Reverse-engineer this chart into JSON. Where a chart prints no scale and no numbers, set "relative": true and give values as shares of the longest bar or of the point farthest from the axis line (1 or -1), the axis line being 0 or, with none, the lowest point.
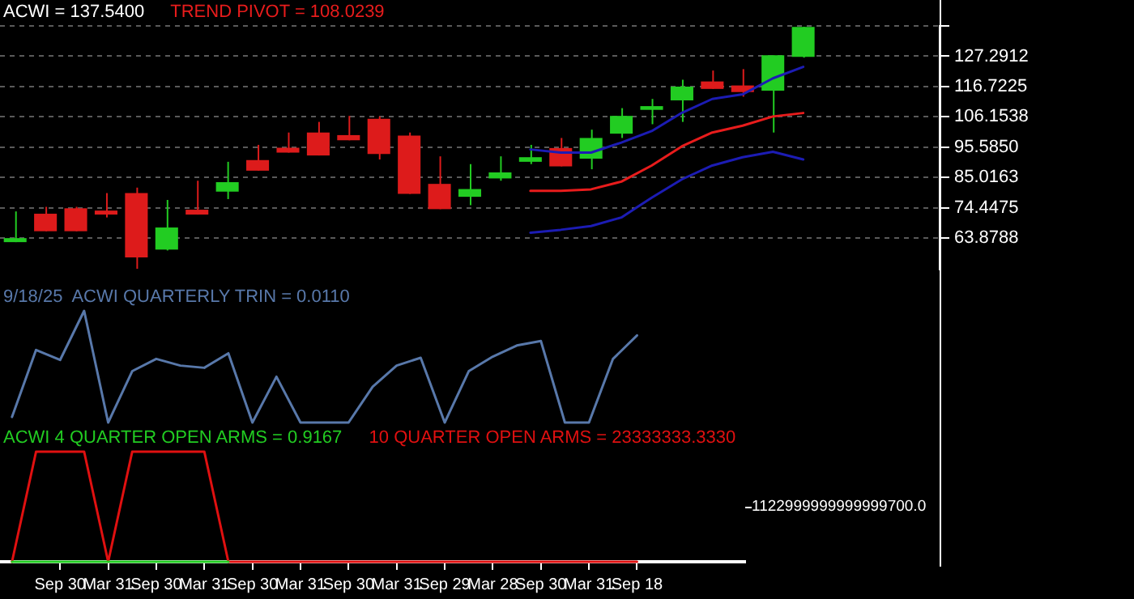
{
  "chart_data": [
    {
      "type": "candlestick",
      "title": "ACWI = 137.5400",
      "legend": "top left",
      "grid": "y",
      "tick_labels": "y",
      "marker": "none",
      "categories": [
        null,
        null,
        null,
        null,
        null,
        null,
        null,
        null,
        null,
        null,
        null,
        null,
        null,
        null,
        null,
        null,
        null,
        null,
        null,
        null,
        null,
        null,
        null,
        null,
        null,
        null,
        null,
        null,
        null,
        null,
        null
      ],
      "ylim": [
        53.0,
        137.86
      ],
      "yticks": [
        63.8788,
        74.4475,
        85.0163,
        {
          "value": 95.585,
          "label": "95.5850"
        },
        106.1538,
        116.7225,
        127.2912,
        {
          "value": 137.86,
          "label": null
        }
      ],
      "series": [
        {
          "colors": [
            "#22cc22",
            "#dd1b1b",
            "#dd1b1b",
            "#dd1b1b",
            "#dd1b1b",
            "#22cc22",
            "#dd1b1b",
            "#22cc22",
            "#dd1b1b",
            "#dd1b1b",
            "#dd1b1b",
            "#dd1b1b",
            "#dd1b1b",
            "#dd1b1b",
            "#dd1b1b",
            "#22cc22",
            "#22cc22",
            "#22cc22",
            "#dd1b1b",
            "#22cc22",
            "#22cc22",
            "#22cc22",
            "#22cc22",
            "#dd1b1b",
            "#dd1b1b",
            "#22cc22",
            "#22cc22",
            null,
            null,
            null,
            null
          ],
          "ohlc": [
            [
              62.5,
              73.2,
              62.5,
              63.9
            ],
            [
              72.4,
              74.8,
              66.3,
              66.3
            ],
            [
              74.3,
              74.8,
              66.3,
              66.3
            ],
            [
              73.5,
              79.6,
              71.1,
              72.1
            ],
            [
              79.6,
              81.5,
              53.2,
              57.2
            ],
            [
              59.9,
              77.2,
              59.6,
              67.6
            ],
            [
              73.8,
              83.9,
              72.1,
              72.1
            ],
            [
              80.1,
              90.5,
              77.5,
              83.4
            ],
            [
              91.1,
              96.4,
              87.4,
              87.4
            ],
            [
              95.4,
              100.7,
              93.7,
              93.7
            ],
            [
              100.7,
              104.4,
              92.7,
              92.7
            ],
            [
              99.8,
              106.5,
              98.0,
              98.0
            ],
            [
              105.5,
              106.3,
              91.3,
              93.2
            ],
            [
              99.6,
              100.7,
              79.3,
              79.3
            ],
            [
              82.8,
              92.4,
              74.0,
              74.0
            ],
            [
              78.3,
              89.7,
              75.4,
              81.0
            ],
            [
              84.7,
              92.4,
              83.9,
              86.8
            ],
            [
              90.5,
              96.4,
              89.7,
              92.1
            ],
            [
              95.3,
              98.8,
              88.9,
              88.9
            ],
            [
              91.6,
              101.7,
              87.9,
              98.8
            ],
            [
              100.3,
              109.2,
              98.8,
              106.5
            ],
            [
              108.6,
              112.4,
              103.6,
              109.9
            ],
            [
              111.9,
              119.1,
              104.4,
              116.7
            ],
            [
              118.5,
              122.3,
              115.9,
              115.9
            ],
            [
              117.1,
              122.8,
              113.2,
              114.8
            ],
            [
              115.3,
              127.6,
              100.7,
              127.6
            ],
            [
              127.1,
              137.54,
              126.8,
              137.54
            ],
            null,
            null,
            null,
            null
          ]
        },
        {
          "type": "line",
          "name": "TREND PIVOT = 108.0239",
          "color": "#e81c1c",
          "values": [
            null,
            null,
            null,
            null,
            null,
            null,
            null,
            null,
            null,
            null,
            null,
            null,
            null,
            null,
            null,
            null,
            null,
            80.4,
            80.4,
            80.9,
            83.6,
            89.2,
            95.9,
            100.7,
            103.1,
            106.3,
            107.5,
            null,
            null,
            null,
            null
          ]
        },
        {
          "type": "line",
          "color": "#1c1cb4",
          "values": [
            null,
            null,
            null,
            null,
            null,
            null,
            null,
            null,
            null,
            null,
            null,
            null,
            null,
            null,
            null,
            null,
            null,
            94.8,
            93.7,
            93.7,
            97.2,
            101.2,
            107.6,
            112.4,
            114.0,
            119.6,
            123.6,
            null,
            null,
            null,
            null
          ]
        },
        {
          "type": "line",
          "color": "#1c1cb4",
          "values": [
            null,
            null,
            null,
            null,
            null,
            null,
            null,
            null,
            null,
            null,
            null,
            null,
            null,
            null,
            null,
            null,
            null,
            65.8,
            66.8,
            68.1,
            71.1,
            78.0,
            84.4,
            89.2,
            92.1,
            94.0,
            91.3,
            null,
            null,
            null,
            null
          ]
        }
      ]
    },
    {
      "type": "line",
      "relative": true,
      "legend": "top left",
      "tick_labels": false,
      "marker": "none",
      "categories": [
        null,
        null,
        null,
        null,
        null,
        null,
        null,
        null,
        null,
        null,
        null,
        null,
        null,
        null,
        null,
        null,
        null,
        null,
        null,
        null,
        null,
        null,
        null,
        null,
        null,
        null,
        null,
        null,
        null,
        null,
        null
      ],
      "series": [
        {
          "name": "9/18/25  ACWI QUARTERLY TRIN = 0.0110",
          "color": "#5878aa",
          "values": [
            0.05,
            0.65,
            0.56,
            1,
            0,
            0.46,
            0.57,
            0.51,
            0.49,
            0.62,
            0,
            0.41,
            0,
            0,
            0,
            0.32,
            0.51,
            0.58,
            0,
            0.46,
            0.59,
            0.69,
            0.73,
            0,
            0,
            0.57,
            0.78,
            null,
            null,
            null,
            null
          ]
        }
      ]
    },
    {
      "type": "line",
      "relative": true,
      "legend": "top left",
      "tick_labels": "x",
      "marker": "none",
      "categories": [
        null,
        null,
        "Sep 30",
        null,
        "Mar 31",
        null,
        "Sep 30",
        null,
        "Mar 31",
        null,
        "Sep 30",
        null,
        "Mar 31",
        null,
        "Sep 30",
        null,
        "Mar 31",
        null,
        "Sep 29",
        null,
        "Mar 28",
        null,
        "Sep 30",
        null,
        "Mar 31",
        null,
        "Sep 18",
        null,
        null,
        null,
        null
      ],
      "annotations": [
        "1122999999999999700.0"
      ],
      "series": [
        {
          "name": "ACWI 4 QUARTER OPEN ARMS = 0.9167",
          "color": "#22cc22",
          "values": [
            0,
            0,
            0,
            0,
            0,
            0,
            0,
            0,
            0,
            0,
            null,
            null,
            null,
            null,
            null,
            null,
            null,
            null,
            null,
            null,
            null,
            null,
            null,
            null,
            null,
            null,
            null,
            null,
            null,
            null,
            null
          ]
        },
        {
          "name": "10 QUARTER OPEN ARMS = 23333333.3330",
          "color": "#e01010",
          "values": [
            0,
            1,
            1,
            1,
            0,
            1,
            1,
            1,
            1,
            0,
            0,
            0,
            0,
            0,
            0,
            0,
            0,
            0,
            0,
            0,
            0,
            0,
            0,
            0,
            0,
            0,
            0,
            null,
            null,
            null,
            null
          ]
        }
      ]
    }
  ]
}
